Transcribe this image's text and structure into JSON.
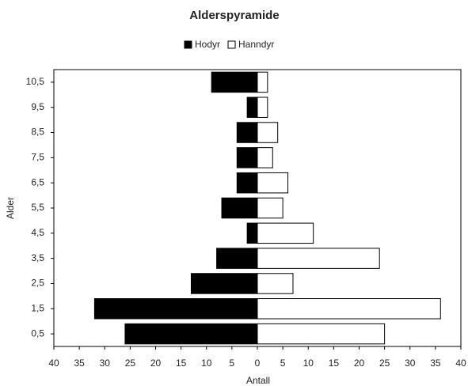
{
  "chart_data": {
    "type": "pyramid",
    "title": "Alderspyramide",
    "x_label": "Antall",
    "y_label": "Alder",
    "categories": [
      "0,5",
      "1,5",
      "2,5",
      "3,5",
      "4,5",
      "5,5",
      "6,5",
      "7,5",
      "8,5",
      "9,5",
      "10,5"
    ],
    "series": [
      {
        "name": "Hodyr",
        "color": "#000000",
        "values": [
          -26,
          -32,
          -13,
          -8,
          -2,
          -7,
          -4,
          -4,
          -4,
          -2,
          -9
        ]
      },
      {
        "name": "Hanndyr",
        "color": "#ffffff",
        "values": [
          25,
          36,
          7,
          24,
          11,
          5,
          6,
          3,
          4,
          2,
          2
        ]
      }
    ],
    "xlim": [
      -40,
      40
    ],
    "xticks": [
      {
        "value": -40,
        "label": "40"
      },
      {
        "value": -35,
        "label": "35"
      },
      {
        "value": -30,
        "label": "30"
      },
      {
        "value": -25,
        "label": "25"
      },
      {
        "value": -20,
        "label": "20"
      },
      {
        "value": -15,
        "label": "15"
      },
      {
        "value": -10,
        "label": "10"
      },
      {
        "value": -5,
        "label": "5"
      },
      0,
      5,
      10,
      15,
      20,
      25,
      30,
      35,
      40
    ],
    "legend": "top"
  }
}
